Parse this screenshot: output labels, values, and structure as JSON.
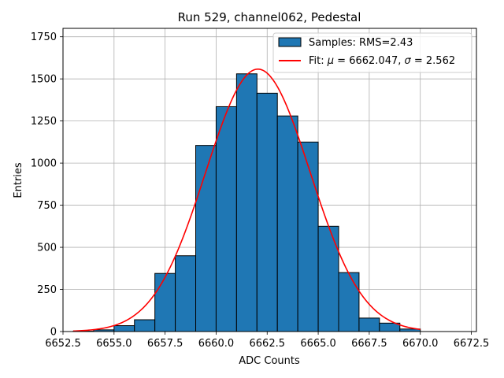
{
  "chart_data": {
    "type": "bar",
    "title": "Run 529, channel062, Pedestal",
    "xlabel": "ADC Counts",
    "ylabel": "Entries",
    "xlim": [
      6652.5,
      6672.75
    ],
    "ylim": [
      0,
      1800
    ],
    "xticks": [
      6652.5,
      6655.0,
      6657.5,
      6660.0,
      6662.5,
      6665.0,
      6667.5,
      6670.0,
      6672.5
    ],
    "xtick_labels": [
      "6652.5",
      "6655.0",
      "6657.5",
      "6660.0",
      "6662.5",
      "6665.0",
      "6667.5",
      "6670.0",
      "6672.5"
    ],
    "yticks": [
      0,
      250,
      500,
      750,
      1000,
      1250,
      1500,
      1750
    ],
    "ytick_labels": [
      "0",
      "250",
      "500",
      "750",
      "1000",
      "1250",
      "1500",
      "1750"
    ],
    "grid": true,
    "legend_position": "top-right",
    "series": [
      {
        "name": "Samples: RMS=2.43",
        "kind": "histogram",
        "color": "#1f77b4",
        "bin_edges": [
          6653,
          6654,
          6655,
          6656,
          6657,
          6658,
          6659,
          6660,
          6661,
          6662,
          6663,
          6664,
          6665,
          6666,
          6667,
          6668,
          6669,
          6670
        ],
        "counts": [
          2,
          10,
          35,
          70,
          345,
          450,
          1105,
          1335,
          1530,
          1415,
          1280,
          1125,
          625,
          350,
          80,
          50,
          15
        ]
      },
      {
        "name_prefix": "Fit: ",
        "name_mu": "μ",
        "name_mid": " = 6662.047, ",
        "name_sigma": "σ",
        "name_suffix": " = 2.562",
        "kind": "gaussian_fit",
        "color": "#ff0000",
        "mu": 6662.047,
        "sigma": 2.562,
        "amplitude": 1558,
        "x_range": [
          6653,
          6670
        ]
      }
    ]
  }
}
